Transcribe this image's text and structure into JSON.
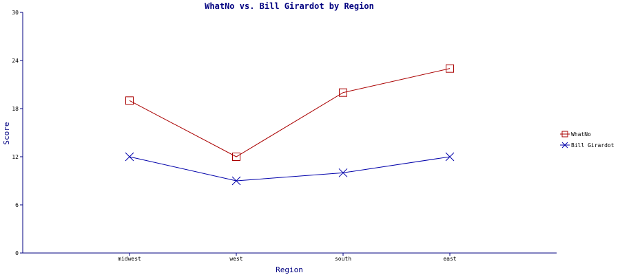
{
  "chart_data": {
    "type": "line",
    "title": "WhatNo vs. Bill Girardot by Region",
    "xlabel": "Region",
    "ylabel": "Score",
    "categories": [
      "midwest",
      "west",
      "south",
      "east"
    ],
    "ylim": [
      0,
      30
    ],
    "yticks": [
      "0",
      "6",
      "12",
      "18",
      "24",
      "30"
    ],
    "grid": false,
    "legend_position": "right",
    "series": [
      {
        "name": "WhatNo",
        "values": [
          19,
          12,
          20,
          23
        ],
        "color": "#aa0000",
        "marker": "square"
      },
      {
        "name": "Bill Girardot",
        "values": [
          12,
          9,
          10,
          12
        ],
        "color": "#0000aa",
        "marker": "x"
      }
    ],
    "axis_color": "#000080"
  }
}
